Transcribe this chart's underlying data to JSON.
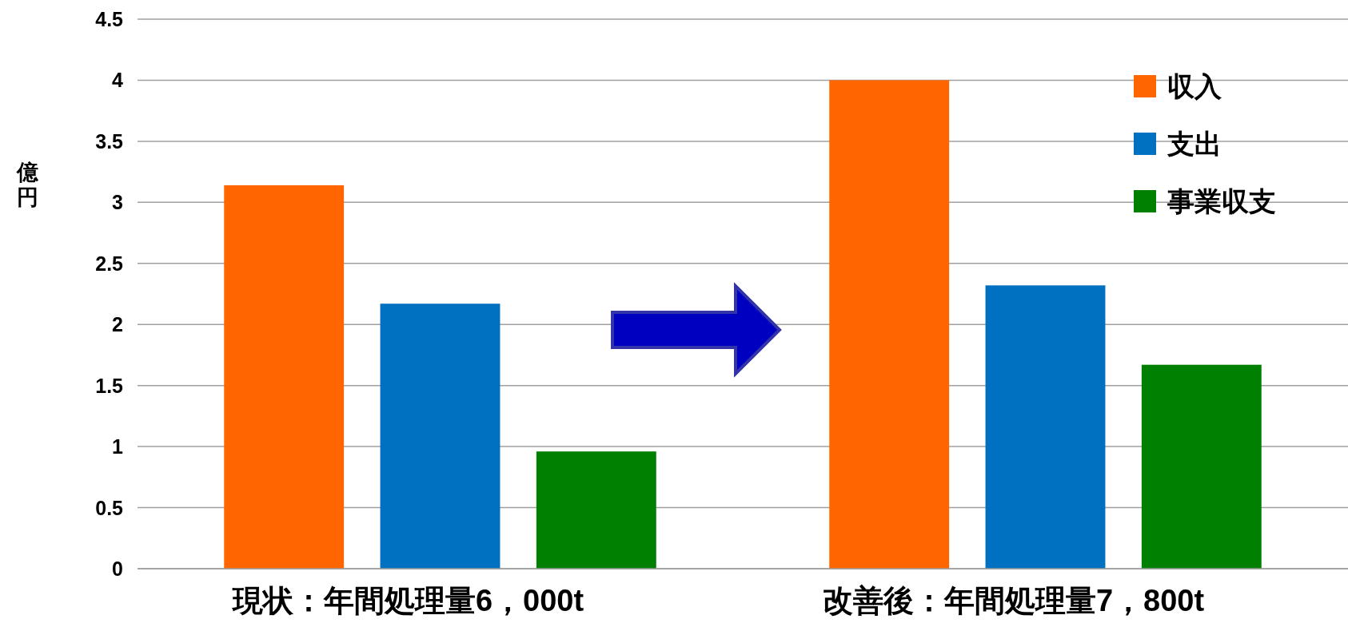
{
  "chart_data": {
    "type": "bar",
    "ylabel": "億円",
    "categories": [
      "現状：年間処理量6，000t",
      "改善後：年間処理量7，800t"
    ],
    "series": [
      {
        "name": "収入",
        "color": "#ff6600",
        "values": [
          3.14,
          4.0
        ]
      },
      {
        "name": "支出",
        "color": "#0070c0",
        "values": [
          2.17,
          2.32
        ]
      },
      {
        "name": "事業収支",
        "color": "#008000",
        "values": [
          0.96,
          1.67
        ]
      }
    ],
    "ylim": [
      0,
      4.5
    ],
    "yticks": [
      0,
      0.5,
      1,
      1.5,
      2,
      2.5,
      3,
      3.5,
      4,
      4.5
    ],
    "grid": "y",
    "legend": "top right"
  }
}
